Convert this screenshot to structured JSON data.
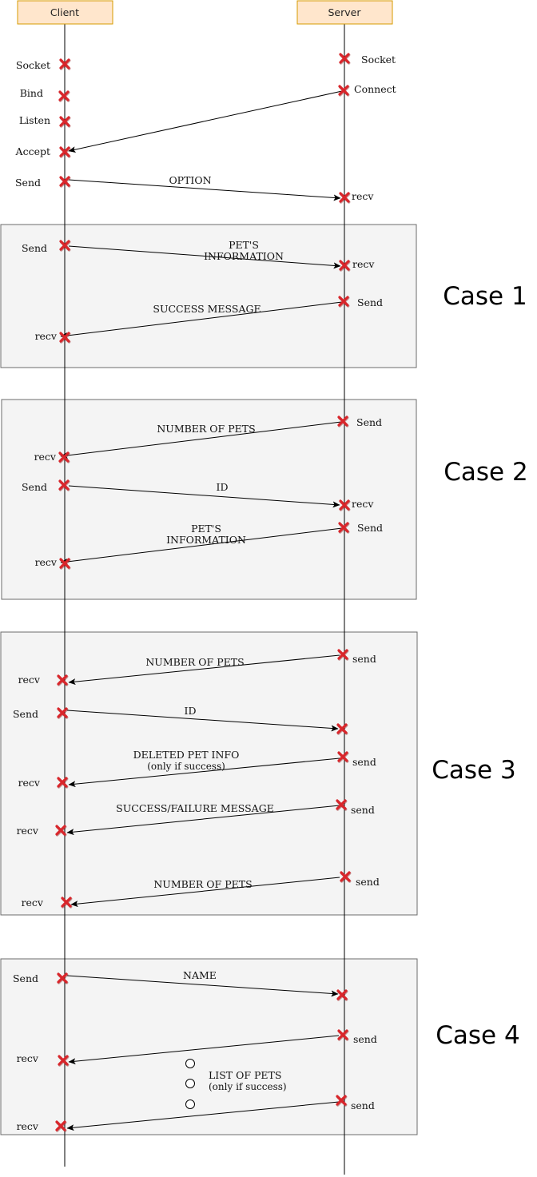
{
  "participants": {
    "client": "Client",
    "server": "Server"
  },
  "setup": {
    "client_steps": [
      "Socket",
      "Bind",
      "Listen",
      "Accept",
      "Send"
    ],
    "server_steps": [
      "Socket",
      "Connect",
      "recv"
    ],
    "option_message": "OPTION"
  },
  "cases": [
    {
      "title": "Case 1",
      "client_steps": [
        "Send",
        "recv"
      ],
      "server_steps": [
        "recv",
        "Send"
      ],
      "messages": [
        "PET'S",
        "INFORMATION",
        "SUCCESS MESSAGE"
      ]
    },
    {
      "title": "Case 2",
      "client_steps": [
        "recv",
        "Send",
        "recv"
      ],
      "server_steps": [
        "Send",
        "recv",
        "Send"
      ],
      "messages": [
        "NUMBER OF PETS",
        "ID",
        "PET'S",
        "INFORMATION"
      ]
    },
    {
      "title": "Case 3",
      "client_steps": [
        "recv",
        "Send",
        "recv",
        "recv",
        "recv"
      ],
      "server_steps": [
        "send",
        "send",
        "send",
        "send"
      ],
      "messages": [
        "NUMBER OF PETS",
        "ID",
        "DELETED PET INFO",
        "(only if success)",
        "SUCCESS/FAILURE MESSAGE",
        "NUMBER OF PETS"
      ]
    },
    {
      "title": "Case 4",
      "client_steps": [
        "Send",
        "recv",
        "recv"
      ],
      "server_steps": [
        "send",
        "send"
      ],
      "messages": [
        "NAME",
        "LIST OF PETS",
        "(only if success)"
      ]
    }
  ],
  "colors": {
    "participant_fill": "#ffe6cc",
    "participant_stroke": "#d79b00",
    "case_box_fill": "#f4f4f4",
    "case_box_stroke": "#6b6b6b",
    "marker": "#d9262b"
  }
}
